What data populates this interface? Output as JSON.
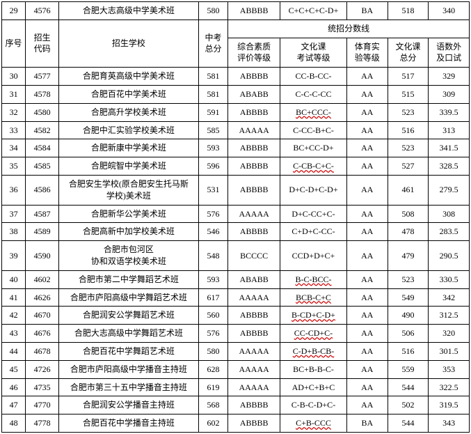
{
  "top_row": {
    "seq": "29",
    "code": "4576",
    "school": "合肥大志高级中学美术班",
    "score": "580",
    "eval": "ABBBB",
    "culture": "C+C+C+C-D+",
    "pe": "BA",
    "cscore": "518",
    "lang": "340"
  },
  "headers": {
    "seq": "序号",
    "code": "招生\n代码",
    "school": "招生学校",
    "score": "中考\n总分",
    "group": "统招分数线",
    "eval": "综合素质\n评价等级",
    "culture": "文化课\n考试等级",
    "pe": "体育实\n验等级",
    "cscore": "文化课\n总分",
    "lang": "语数外\n及口试"
  },
  "rows": [
    {
      "seq": "30",
      "code": "4577",
      "school": "合肥育英高级中学美术班",
      "score": "581",
      "eval": "ABBBB",
      "culture": "CC-B-CC-",
      "pe": "AA",
      "cscore": "517",
      "lang": "329",
      "wavy": false
    },
    {
      "seq": "31",
      "code": "4578",
      "school": "合肥百花中学美术班",
      "score": "581",
      "eval": "ABABB",
      "culture": "C-C-C-CC",
      "pe": "AA",
      "cscore": "515",
      "lang": "309",
      "wavy": false
    },
    {
      "seq": "32",
      "code": "4580",
      "school": "合肥高升学校美术班",
      "score": "591",
      "eval": "ABBBB",
      "culture": "BC+CCC-",
      "pe": "AA",
      "cscore": "523",
      "lang": "339.5",
      "wavy": true
    },
    {
      "seq": "33",
      "code": "4582",
      "school": "合肥中汇实验学校美术班",
      "score": "585",
      "eval": "AAAAA",
      "culture": "C-CC-B+C-",
      "pe": "AA",
      "cscore": "516",
      "lang": "313",
      "wavy": false
    },
    {
      "seq": "34",
      "code": "4584",
      "school": "合肥新康中学美术班",
      "score": "593",
      "eval": "ABBBB",
      "culture": "BC+CC-D+",
      "pe": "AA",
      "cscore": "523",
      "lang": "341.5",
      "wavy": false
    },
    {
      "seq": "35",
      "code": "4585",
      "school": "合肥皖智中学美术班",
      "score": "596",
      "eval": "ABBBB",
      "culture": "C-CB-C+C-",
      "pe": "AA",
      "cscore": "527",
      "lang": "328.5",
      "wavy": true
    },
    {
      "seq": "36",
      "code": "4586",
      "school": "合肥安生学校(原合肥安生托马斯\n学校)美术班",
      "score": "531",
      "eval": "ABBBB",
      "culture": "D+C-D+C-D+",
      "pe": "AA",
      "cscore": "461",
      "lang": "279.5",
      "wavy": false
    },
    {
      "seq": "37",
      "code": "4587",
      "school": "合肥新华公学美术班",
      "score": "576",
      "eval": "AAAAA",
      "culture": "D+C-CC+C-",
      "pe": "AA",
      "cscore": "508",
      "lang": "308",
      "wavy": false
    },
    {
      "seq": "38",
      "code": "4589",
      "school": "合肥高新中加学校美术班",
      "score": "546",
      "eval": "ABBBB",
      "culture": "C+D+C-CC-",
      "pe": "AA",
      "cscore": "478",
      "lang": "283.5",
      "wavy": false
    },
    {
      "seq": "39",
      "code": "4590",
      "school": "合肥市包河区\n协和双语学校美术班",
      "score": "548",
      "eval": "BCCCC",
      "culture": "CCD+D+C+",
      "pe": "AA",
      "cscore": "479",
      "lang": "290.5",
      "wavy": false
    },
    {
      "seq": "40",
      "code": "4602",
      "school": "合肥市第二中学舞蹈艺术班",
      "score": "593",
      "eval": "ABABB",
      "culture": "B-C-BCC-",
      "pe": "AA",
      "cscore": "523",
      "lang": "330.5",
      "wavy": true
    },
    {
      "seq": "41",
      "code": "4626",
      "school": "合肥市庐阳高级中学舞蹈艺术班",
      "score": "617",
      "eval": "AAAAA",
      "culture": "BCB-C+C",
      "pe": "AA",
      "cscore": "549",
      "lang": "342",
      "wavy": true
    },
    {
      "seq": "42",
      "code": "4670",
      "school": "合肥润安公学舞蹈艺术班",
      "score": "560",
      "eval": "ABBBB",
      "culture": "B-CD+C-D+",
      "pe": "AA",
      "cscore": "490",
      "lang": "312.5",
      "wavy": true
    },
    {
      "seq": "43",
      "code": "4676",
      "school": "合肥大志高级中学舞蹈艺术班",
      "score": "576",
      "eval": "ABBBB",
      "culture": "CC-CD+C-",
      "pe": "AA",
      "cscore": "506",
      "lang": "320",
      "wavy": true
    },
    {
      "seq": "44",
      "code": "4678",
      "school": "合肥百花中学舞蹈艺术班",
      "score": "580",
      "eval": "AAAAA",
      "culture": "C-D+B-CB-",
      "pe": "AA",
      "cscore": "516",
      "lang": "301.5",
      "wavy": true
    },
    {
      "seq": "45",
      "code": "4726",
      "school": "合肥市庐阳高级中学播音主持班",
      "score": "628",
      "eval": "AAAAA",
      "culture": "BC+B-B-C-",
      "pe": "AA",
      "cscore": "559",
      "lang": "353",
      "wavy": false
    },
    {
      "seq": "46",
      "code": "4735",
      "school": "合肥市第三十五中学播音主持班",
      "score": "619",
      "eval": "AAAAA",
      "culture": "AD+C+B+C",
      "pe": "AA",
      "cscore": "544",
      "lang": "322.5",
      "wavy": false
    },
    {
      "seq": "47",
      "code": "4770",
      "school": "合肥润安公学播音主持班",
      "score": "568",
      "eval": "ABBBB",
      "culture": "C-B-C-D+C-",
      "pe": "AA",
      "cscore": "502",
      "lang": "319.5",
      "wavy": false
    },
    {
      "seq": "48",
      "code": "4778",
      "school": "合肥百花中学播音主持班",
      "score": "602",
      "eval": "ABBBB",
      "culture": "C+B-CCC",
      "pe": "BA",
      "cscore": "544",
      "lang": "343",
      "wavy": true
    }
  ]
}
